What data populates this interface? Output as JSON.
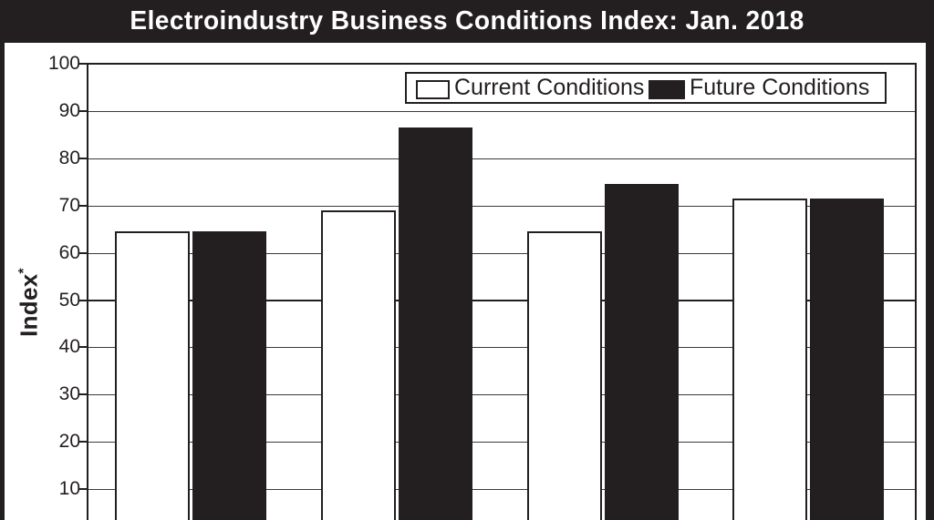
{
  "header": {
    "title": "Electroindustry Business Conditions Index: Jan. 2018"
  },
  "axis": {
    "y_label": "Index",
    "y_label_sup": "*"
  },
  "legend": {
    "items": [
      {
        "label": "Current Conditions",
        "swatch": "white"
      },
      {
        "label": "Future Conditions",
        "swatch": "black"
      }
    ]
  },
  "colors": {
    "ink": "#231f20",
    "paper": "#ffffff",
    "gridline": "#3d3a3b"
  },
  "chart_data": {
    "type": "bar",
    "title": "Electroindustry Business Conditions Index: Jan. 2018",
    "xlabel": "",
    "ylabel": "Index*",
    "categories": [
      "",
      "",
      "",
      ""
    ],
    "x_axis_labels_visible": false,
    "series": [
      {
        "name": "Current Conditions",
        "fill": "white",
        "values": [
          64.5,
          69,
          64.5,
          71.5
        ]
      },
      {
        "name": "Future Conditions",
        "fill": "black",
        "values": [
          64.5,
          86.5,
          74.5,
          71.5
        ]
      }
    ],
    "yticks": [
      10,
      20,
      30,
      40,
      50,
      60,
      70,
      80,
      90,
      100
    ],
    "ylim": [
      0,
      100
    ],
    "visible_bottom_value": 3.5,
    "emphasized_gridline": 50,
    "grid": true,
    "bar_outline": "black",
    "legend_position": "top-right"
  }
}
